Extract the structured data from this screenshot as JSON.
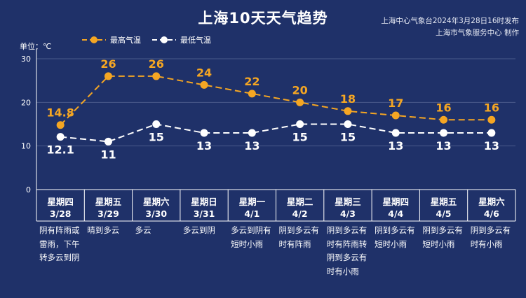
{
  "title": "上海10天天气趋势",
  "source_line1": "上海中心气象台2024年3月28日16时发布",
  "source_line2": "上海市气象服务中心 制作",
  "unit_label": "单位：℃",
  "colors": {
    "background": "#1f3169",
    "max": "#f5a623",
    "min": "#ffffff",
    "grid": "#4a5a8a"
  },
  "chart_data": {
    "type": "line",
    "title": "上海10天天气趋势",
    "ylabel": "单位：℃",
    "ylim": [
      0,
      30
    ],
    "yticks": [
      0,
      10,
      20,
      30
    ],
    "grid": true,
    "legend": "top-left",
    "categories": [
      "3/28",
      "3/29",
      "3/30",
      "3/31",
      "4/1",
      "4/2",
      "4/3",
      "4/4",
      "4/5",
      "4/6"
    ],
    "series": [
      {
        "name": "最高气温",
        "values": [
          14.8,
          26,
          26,
          24,
          22,
          20,
          18,
          17,
          16,
          16
        ],
        "labels": [
          "14.8",
          "26",
          "26",
          "24",
          "22",
          "20",
          "18",
          "17",
          "16",
          "16"
        ]
      },
      {
        "name": "最低气温",
        "values": [
          12.1,
          11,
          15,
          13,
          13,
          15,
          15,
          13,
          13,
          13
        ],
        "labels": [
          "12.1",
          "11",
          "15",
          "13",
          "13",
          "15",
          "15",
          "13",
          "13",
          "13"
        ]
      }
    ]
  },
  "days": [
    {
      "weekday": "星期四",
      "date": "3/28",
      "weather": "阴有阵雨或\n雷雨，下午\n转多云到阴"
    },
    {
      "weekday": "星期五",
      "date": "3/29",
      "weather": "晴到多云"
    },
    {
      "weekday": "星期六",
      "date": "3/30",
      "weather": "多云"
    },
    {
      "weekday": "星期日",
      "date": "3/31",
      "weather": "多云到阴"
    },
    {
      "weekday": "星期一",
      "date": "4/1",
      "weather": "多云到阴有\n短时小雨"
    },
    {
      "weekday": "星期二",
      "date": "4/2",
      "weather": "阴到多云有\n时有阵雨"
    },
    {
      "weekday": "星期三",
      "date": "4/3",
      "weather": "阴到多云有\n时有阵雨转\n阴到多云有\n时有小雨"
    },
    {
      "weekday": "星期四",
      "date": "4/4",
      "weather": "阴到多云有\n短时小雨"
    },
    {
      "weekday": "星期五",
      "date": "4/5",
      "weather": "阴到多云有\n短时小雨"
    },
    {
      "weekday": "星期六",
      "date": "4/6",
      "weather": "阴到多云有\n时有小雨"
    }
  ]
}
